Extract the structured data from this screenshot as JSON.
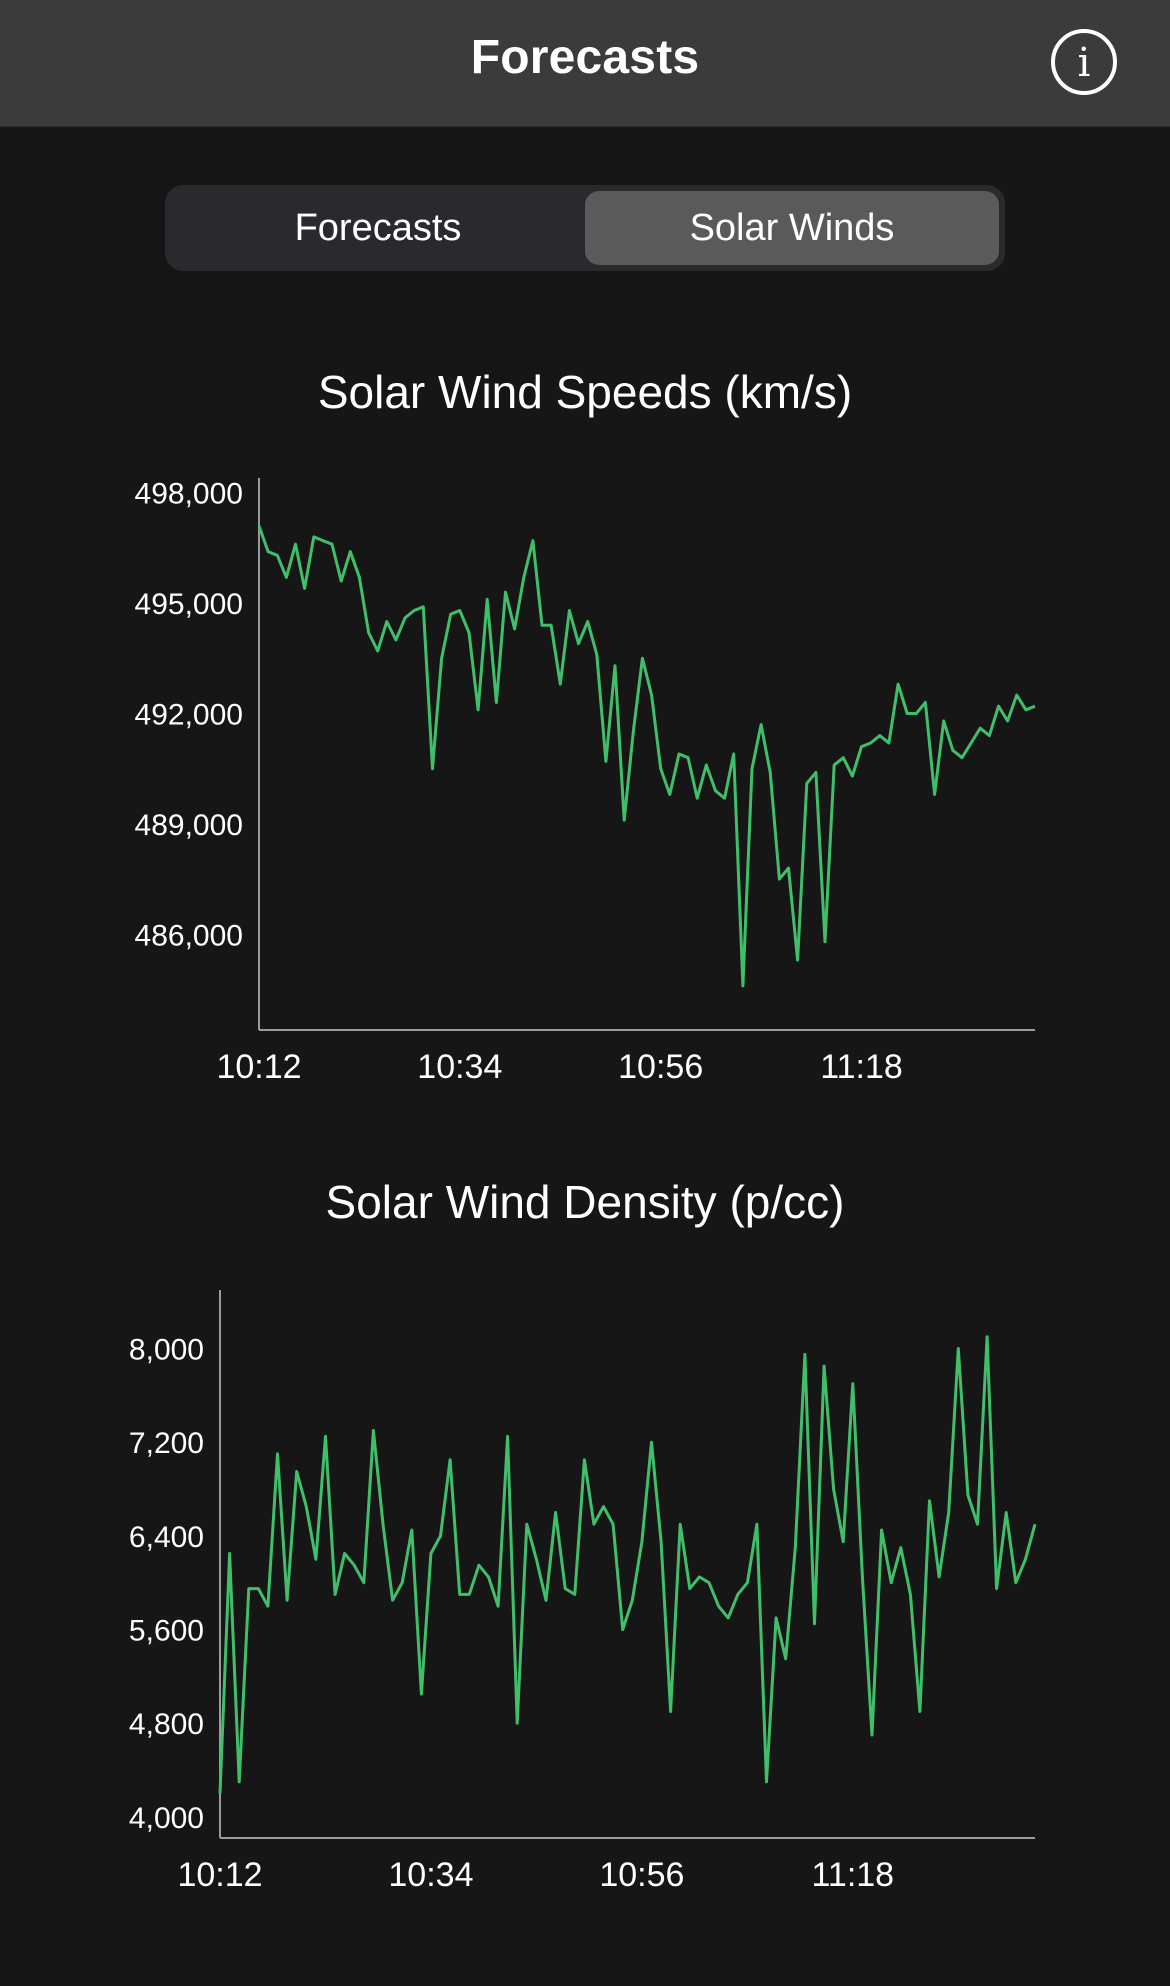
{
  "nav": {
    "title": "Forecasts",
    "info_icon": "info-circle-icon"
  },
  "segmented_control": {
    "options": [
      "Forecasts",
      "Solar Winds"
    ],
    "selected_index": 1
  },
  "colors": {
    "background": "#161616",
    "nav_background": "#3b3b3b",
    "line": "#3fbf6a",
    "axis": "#9a9a9a"
  },
  "chart_data": [
    {
      "type": "line",
      "title": "Solar Wind Speeds (km/s)",
      "xlabel": "",
      "ylabel": "",
      "x_ticks": [
        "10:12",
        "10:34",
        "10:56",
        "11:18"
      ],
      "x_range": [
        "10:12",
        "11:37"
      ],
      "y_ticks": [
        486000,
        489000,
        492000,
        495000,
        498000
      ],
      "ylim": [
        483400,
        498400
      ],
      "grid": false,
      "series": [
        {
          "values": [
            497100,
            496400,
            496300,
            495700,
            496600,
            495400,
            496800,
            496700,
            496600,
            495600,
            496400,
            495700,
            494200,
            493700,
            494500,
            494000,
            494600,
            494800,
            494900,
            490500,
            493500,
            494700,
            494800,
            494200,
            492100,
            495100,
            492300,
            495300,
            494300,
            495700,
            496700,
            494400,
            494400,
            492800,
            494800,
            493900,
            494500,
            493600,
            490700,
            493300,
            489100,
            491500,
            493500,
            492500,
            490500,
            489800,
            490900,
            490800,
            489700,
            490600,
            489900,
            489700,
            490900,
            484600,
            490500,
            491700,
            490400,
            487500,
            487800,
            485300,
            490100,
            490400,
            485800,
            490600,
            490800,
            490300,
            491100,
            491200,
            491400,
            491200,
            492800,
            492000,
            492000,
            492300,
            489800,
            491800,
            491000,
            490800,
            491200,
            491600,
            491400,
            492200,
            491800,
            492500,
            492100,
            492200
          ]
        }
      ]
    },
    {
      "type": "line",
      "title": "Solar Wind Density (p/cc)",
      "xlabel": "",
      "ylabel": "",
      "x_ticks": [
        "10:12",
        "10:34",
        "10:56",
        "11:18"
      ],
      "x_range": [
        "10:12",
        "11:37"
      ],
      "y_ticks": [
        4000,
        4800,
        5600,
        6400,
        7200,
        8000
      ],
      "ylim": [
        3820,
        8500
      ],
      "grid": false,
      "series": [
        {
          "values": [
            4200,
            6250,
            4300,
            5950,
            5950,
            5800,
            7100,
            5850,
            6950,
            6650,
            6200,
            7250,
            5900,
            6250,
            6150,
            6000,
            7300,
            6500,
            5850,
            6000,
            6450,
            5050,
            6250,
            6400,
            7050,
            5900,
            5900,
            6150,
            6050,
            5800,
            7250,
            4800,
            6500,
            6200,
            5850,
            6600,
            5950,
            5900,
            7050,
            6500,
            6650,
            6500,
            5600,
            5850,
            6350,
            7200,
            6350,
            4900,
            6500,
            5950,
            6050,
            6000,
            5800,
            5700,
            5900,
            6000,
            6500,
            4300,
            5700,
            5350,
            6300,
            7950,
            5650,
            7850,
            6800,
            6350,
            7700,
            6050,
            4700,
            6450,
            6000,
            6300,
            5900,
            4900,
            6700,
            6050,
            6600,
            8000,
            6750,
            6500,
            8100,
            5950,
            6600,
            6000,
            6200,
            6500
          ]
        }
      ]
    }
  ]
}
